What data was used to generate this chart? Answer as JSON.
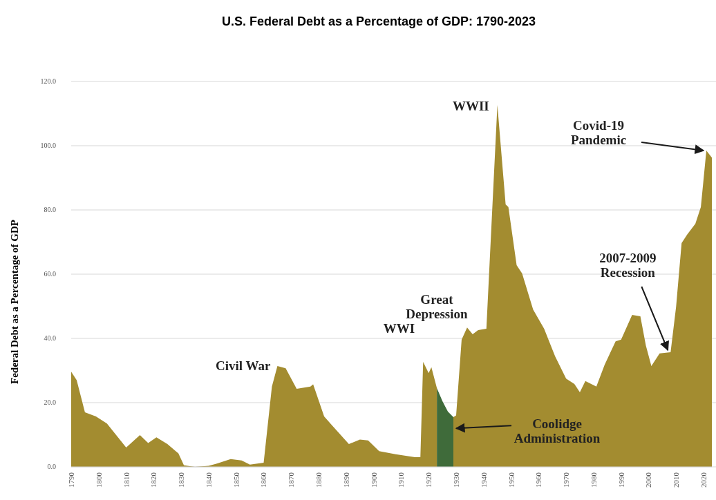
{
  "chart_data": {
    "type": "area",
    "title": "U.S. Federal Debt as a Percentage of GDP: 1790-2023",
    "ylabel": "Federal Debt as a Percentage of GDP",
    "xlim": [
      1790,
      2023
    ],
    "xticks": [
      1790,
      1800,
      1810,
      1820,
      1830,
      1840,
      1850,
      1860,
      1870,
      1880,
      1890,
      1900,
      1910,
      1920,
      1930,
      1940,
      1950,
      1960,
      1970,
      1980,
      1990,
      2000,
      2010,
      2020
    ],
    "ylim": [
      0,
      120
    ],
    "yticks": [
      {
        "value": 0,
        "label": "0.0"
      },
      {
        "value": 20,
        "label": "20.0"
      },
      {
        "value": 40,
        "label": "40.0"
      },
      {
        "value": 60,
        "label": "60.0"
      },
      {
        "value": 80,
        "label": "80.0"
      },
      {
        "value": 100,
        "label": "100.0"
      },
      {
        "value": 120,
        "label": "120.0"
      }
    ],
    "grid": "y",
    "series": [
      {
        "color": "#a38c30",
        "x": [
          1790,
          1792,
          1795,
          1799,
          1803,
          1810,
          1815,
          1818,
          1821,
          1825,
          1829,
          1831,
          1835,
          1840,
          1843,
          1848,
          1852,
          1855,
          1860,
          1863,
          1865,
          1868,
          1872,
          1877,
          1878,
          1882,
          1885,
          1891,
          1895,
          1898,
          1902,
          1908,
          1915,
          1917,
          1918,
          1920,
          1921,
          1923,
          1924,
          1929,
          1930,
          1932,
          1934,
          1936,
          1938,
          1941,
          1945,
          1948,
          1949,
          1952,
          1954,
          1958,
          1962,
          1966,
          1970,
          1973,
          1975,
          1977,
          1981,
          1984,
          1988,
          1990,
          1994,
          1997,
          1999,
          2001,
          2004,
          2008,
          2010,
          2012,
          2014,
          2017,
          2019,
          2021,
          2023
        ],
        "values": [
          29.6,
          27,
          17,
          15.7,
          13.5,
          6,
          9.9,
          7.4,
          9.2,
          7.1,
          4.2,
          0.5,
          0,
          0.3,
          1,
          2.4,
          2,
          0.7,
          1.3,
          25,
          31.4,
          30.7,
          24.3,
          25,
          25.7,
          15.7,
          12.8,
          7.1,
          8.5,
          8.2,
          4.9,
          3.9,
          3,
          3,
          32.7,
          29.2,
          31,
          24.5,
          null,
          15.5,
          16,
          39.6,
          43.4,
          41.3,
          42.6,
          43,
          112.7,
          81.7,
          80.9,
          62.8,
          60.2,
          49,
          43,
          34.4,
          27.5,
          25.8,
          23.2,
          26.7,
          25,
          31.8,
          39.1,
          39.6,
          47.3,
          46.9,
          37.8,
          31.4,
          35.3,
          35.7,
          49.9,
          69.7,
          72.3,
          75.7,
          80.9,
          98.5,
          96.3
        ]
      },
      {
        "color": "#3f6b3a",
        "x": [
          1923,
          1925,
          1927,
          1929
        ],
        "values": [
          24.5,
          20.5,
          17.2,
          15.5
        ]
      }
    ],
    "annotations": [
      {
        "text": "WWII",
        "x": 1945,
        "y": 112.7
      },
      {
        "text": "Covid-19 Pandemic",
        "x": 2021,
        "y": 98.5
      },
      {
        "text": "2007-2009 Recession",
        "x": 2008,
        "y": 35.7
      },
      {
        "text": "Great Depression",
        "x": 1933,
        "y": 41
      },
      {
        "text": "WWI",
        "x": 1918,
        "y": 32.7
      },
      {
        "text": "Civil War",
        "x": 1865,
        "y": 31.4
      },
      {
        "text": "Coolidge Administration",
        "x": 1929,
        "y": 12
      }
    ]
  }
}
